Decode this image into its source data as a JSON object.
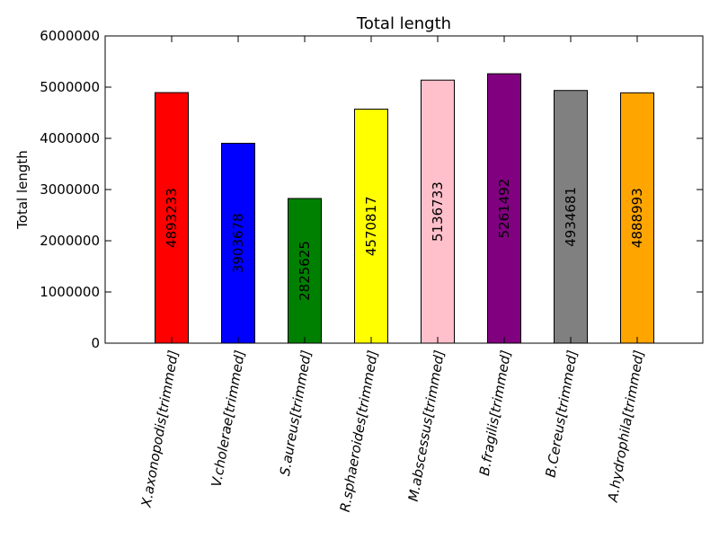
{
  "chart_data": {
    "type": "bar",
    "title": "Total length",
    "xlabel": "",
    "ylabel": "Total length",
    "ylim": [
      0,
      6000000
    ],
    "yticks": [
      0,
      1000000,
      2000000,
      3000000,
      4000000,
      5000000,
      6000000
    ],
    "yticks_text": [
      "0",
      "1000000",
      "2000000",
      "3000000",
      "4000000",
      "5000000",
      "6000000"
    ],
    "categories": [
      "X.axonopodis[trimmed]",
      "V.cholerae[trimmed]",
      "S.aureus[trimmed]",
      "R.sphaeroides[trimmed]",
      "M.abscessus[trimmed]",
      "B.fragilis[trimmed]",
      "B.Cereus[trimmed]",
      "A.hydrophila[trimmed]"
    ],
    "values": [
      4893233,
      3903678,
      2825625,
      4570817,
      5136733,
      5261492,
      4934681,
      4888993
    ],
    "value_labels": [
      "4893233",
      "3903678",
      "2825625",
      "4570817",
      "5136733",
      "5261492",
      "4934681",
      "4888993"
    ],
    "colors": [
      "#ff0000",
      "#0000ff",
      "#008000",
      "#ffff00",
      "#ffc0cb",
      "#800080",
      "#808080",
      "#ffa500"
    ],
    "grid": false,
    "legend": "none"
  }
}
